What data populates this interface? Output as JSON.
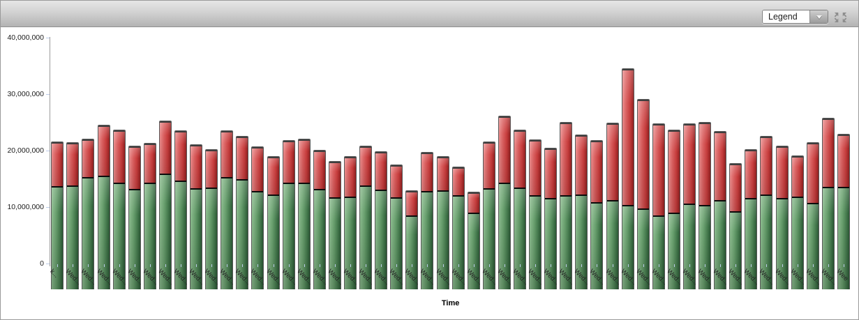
{
  "toolbar": {
    "legend_label": "Legend",
    "collapse_icon": "collapse-arrows"
  },
  "colors": {
    "toolbar_top": "#e6e6e6",
    "toolbar_bottom": "#b3b3b3",
    "bar_green": "#69a06e",
    "bar_red": "#cf4a4a",
    "bar_divider": "#0b0b0b",
    "axis_line": "#9b9b9b",
    "tick_mark": "#bccbe8",
    "background": "#ffffff"
  },
  "chart_data": {
    "type": "bar",
    "stacked": true,
    "title": "",
    "xlabel": "Time",
    "ylabel": "",
    "ylim": [
      0,
      40000000
    ],
    "grid": false,
    "legend_position": "toolbar-dropdown-collapsed",
    "y_ticks": [
      {
        "label": "40,000,000",
        "value": 40000000
      },
      {
        "label": "30,000,000",
        "value": 30000000
      },
      {
        "label": "20,000,000",
        "value": 20000000
      },
      {
        "label": "10,000,000",
        "value": 10000000
      },
      {
        "label": "0",
        "value": 0
      }
    ],
    "categories": [
      "k...",
      "Wed...",
      "Wed...",
      "Wed...",
      "Wed...",
      "Wed...",
      "Wed...",
      "Wed...",
      "Wed...",
      "Wed...",
      "Wed...",
      "Wed...",
      "Wed...",
      "Wed...",
      "Wed...",
      "Wed...",
      "Wed...",
      "Wed...",
      "Wed...",
      "Wed...",
      "Wed...",
      "Wed...",
      "Wed...",
      "Wed...",
      "Wed...",
      "Wed...",
      "Wed...",
      "Wed...",
      "Wed...",
      "Wed...",
      "Wed...",
      "Wed...",
      "Wed...",
      "Wed...",
      "Wed...",
      "Wed...",
      "Wed...",
      "Wed...",
      "Wed...",
      "Wed...",
      "Wed...",
      "Wed...",
      "Wed...",
      "Wed...",
      "Wed...",
      "Wed...",
      "Wed...",
      "Wed...",
      "Wed...",
      "Wed...",
      "Wed...",
      "Wee"
    ],
    "series": [
      {
        "name": "bottom-segment-green",
        "color": "#69a06e",
        "values": [
          18000000,
          18200000,
          19600000,
          19900000,
          18700000,
          17500000,
          18600000,
          20200000,
          19000000,
          17700000,
          17800000,
          19600000,
          19200000,
          17200000,
          16500000,
          18600000,
          18700000,
          17500000,
          16100000,
          16200000,
          18200000,
          17400000,
          16100000,
          12900000,
          17200000,
          17300000,
          16400000,
          13300000,
          17600000,
          18600000,
          17800000,
          16400000,
          15900000,
          16400000,
          16500000,
          15200000,
          15500000,
          14700000,
          14100000,
          12900000,
          13300000,
          14900000,
          14700000,
          15500000,
          13600000,
          15900000,
          16500000,
          15900000,
          16200000,
          15100000,
          17900000,
          17900000
        ]
      },
      {
        "name": "top-segment-red",
        "color": "#cf4a4a",
        "values": [
          8000000,
          7700000,
          7000000,
          9100000,
          9500000,
          7800000,
          7200000,
          9500000,
          9000000,
          7800000,
          6900000,
          8400000,
          7800000,
          8000000,
          7000000,
          7700000,
          7800000,
          7100000,
          6500000,
          7300000,
          7100000,
          6900000,
          5900000,
          4500000,
          7000000,
          6200000,
          5200000,
          3900000,
          8500000,
          12000000,
          10300000,
          10000000,
          9100000,
          13100000,
          10800000,
          11100000,
          13900000,
          24300000,
          19500000,
          16400000,
          14800000,
          14300000,
          14800000,
          12400000,
          8600000,
          8800000,
          10600000,
          9400000,
          7400000,
          10800000,
          12300000,
          9500000
        ]
      }
    ]
  }
}
